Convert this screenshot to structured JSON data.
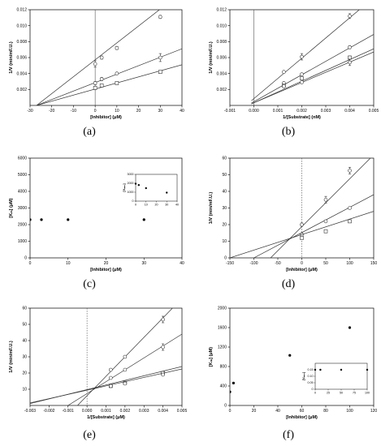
{
  "chart_data": [
    {
      "type": "scatter",
      "panel": "(a)",
      "xlabel": "[Inhibitor] (μM)",
      "ylabel": "1/V (min/mF.U.)",
      "xlim": [
        -30,
        40
      ],
      "ylim": [
        0,
        0.012
      ],
      "xticks": [
        -30,
        -20,
        -10,
        0,
        10,
        20,
        30,
        40
      ],
      "yticks": [
        0.002,
        0.004,
        0.006,
        0.008,
        0.01,
        0.012
      ],
      "xtick_labels": [
        "-30",
        "-20",
        "-10",
        "0",
        "10",
        "20",
        "30",
        "40"
      ],
      "ytick_labels": [
        "0.002",
        "0.004",
        "0.006",
        "0.008",
        "0.010",
        "0.012"
      ],
      "vline_x": 0,
      "series": [
        {
          "marker": "circle",
          "x": [
            0,
            3,
            10,
            30
          ],
          "y": [
            0.0052,
            0.006,
            0.0072,
            0.0111
          ],
          "err": [
            0.0004,
            0.0002,
            0.0002,
            0.0002
          ],
          "fit": [
            [
              -27,
              0
            ],
            [
              40,
              0.0142
            ]
          ]
        },
        {
          "marker": "circle",
          "x": [
            0,
            3,
            10,
            30
          ],
          "y": [
            0.0028,
            0.0033,
            0.004,
            0.006
          ],
          "err": [
            0.0002,
            0.0002,
            0.0001,
            0.0005
          ],
          "fit": [
            [
              -27,
              0
            ],
            [
              40,
              0.0071
            ]
          ]
        },
        {
          "marker": "square",
          "x": [
            0,
            3,
            10,
            30
          ],
          "y": [
            0.0022,
            0.0025,
            0.0028,
            0.0042
          ],
          "err": [
            0.0002,
            0.0001,
            0.0001,
            0.0001
          ],
          "fit": [
            [
              -27,
              0
            ],
            [
              40,
              0.0051
            ]
          ]
        }
      ]
    },
    {
      "type": "scatter",
      "panel": "(b)",
      "xlabel": "1/[Substrate] (nM)",
      "ylabel": "1/V (min/mF.U.)",
      "xlim": [
        -0.001,
        0.005
      ],
      "ylim": [
        0,
        0.012
      ],
      "xticks": [
        -0.001,
        0,
        0.001,
        0.002,
        0.003,
        0.004,
        0.005
      ],
      "yticks": [
        0.002,
        0.004,
        0.006,
        0.008,
        0.01,
        0.012
      ],
      "xtick_labels": [
        "-0.001",
        "0.000",
        "0.001",
        "0.002",
        "0.003",
        "0.004",
        "0.005"
      ],
      "ytick_labels": [
        "0.002",
        "0.004",
        "0.006",
        "0.008",
        "0.010",
        "0.012"
      ],
      "vline_x": 0,
      "series": [
        {
          "marker": "circle",
          "x": [
            0.00125,
            0.002,
            0.004
          ],
          "y": [
            0.0042,
            0.0061,
            0.0112
          ],
          "err": [
            0.0001,
            0.0004,
            0.0003
          ],
          "fit": [
            [
              -0.0001,
              0.0006
            ],
            [
              0.0044,
              0.012
            ]
          ]
        },
        {
          "marker": "circle",
          "x": [
            0.00125,
            0.002,
            0.004
          ],
          "y": [
            0.0028,
            0.0039,
            0.0073
          ],
          "err": [
            0.0001,
            0.0001,
            0.0002
          ],
          "fit": [
            [
              -0.0001,
              0.0003
            ],
            [
              0.005,
              0.0089
            ]
          ]
        },
        {
          "marker": "square",
          "x": [
            0.00125,
            0.002,
            0.004
          ],
          "y": [
            0.0025,
            0.0034,
            0.006
          ],
          "err": [
            0.0001,
            0.0001,
            0.0002
          ],
          "fit": [
            [
              -0.0001,
              0.0002
            ],
            [
              0.005,
              0.0071
            ]
          ]
        },
        {
          "marker": "circle",
          "x": [
            0.00125,
            0.002,
            0.004
          ],
          "y": [
            0.0024,
            0.0029,
            0.0054
          ],
          "err": [
            0.0001,
            0.0001,
            0.0004
          ],
          "fit": [
            [
              -0.0001,
              0.0002
            ],
            [
              0.005,
              0.0067
            ]
          ]
        }
      ]
    },
    {
      "type": "scatter",
      "panel": "(c)",
      "xlabel": "[Inhibitor] (μM)",
      "ylabel": "[Kₘ] (μM)",
      "xlim": [
        0,
        40
      ],
      "ylim": [
        0,
        6000
      ],
      "xticks": [
        0,
        10,
        20,
        30,
        40
      ],
      "yticks": [
        0,
        1000,
        2000,
        3000,
        4000,
        5000,
        6000
      ],
      "xtick_labels": [
        "0",
        "10",
        "20",
        "30",
        "40"
      ],
      "ytick_labels": [
        "0",
        "1000",
        "2000",
        "3000",
        "4000",
        "5000",
        "6000"
      ],
      "series": [
        {
          "marker": "dot",
          "x": [
            0,
            3,
            10,
            30
          ],
          "y": [
            2300,
            2300,
            2300,
            2300
          ]
        }
      ],
      "inset": {
        "ylabel": "[Vₘₐₓ]",
        "xlim": [
          0,
          40
        ],
        "ylim": [
          0,
          3000
        ],
        "xticks": [
          0,
          10,
          20,
          30,
          40
        ],
        "yticks": [
          0,
          1000,
          2000,
          3000
        ],
        "xtick_labels": [
          "0",
          "10",
          "20",
          "30",
          "40"
        ],
        "ytick_labels": [
          "0",
          "1000",
          "2000",
          "3000"
        ],
        "x": [
          0,
          3,
          10,
          30
        ],
        "y": [
          1950,
          1800,
          1450,
          950
        ]
      }
    },
    {
      "type": "scatter",
      "panel": "(d)",
      "xlabel": "[Inhibitor] (μM)",
      "ylabel": "1/V (min/mF.U.)",
      "xlim": [
        -150,
        150
      ],
      "ylim": [
        0,
        60
      ],
      "xticks": [
        -150,
        -100,
        -50,
        0,
        50,
        100,
        150
      ],
      "yticks": [
        0,
        10,
        20,
        30,
        40,
        50,
        60
      ],
      "xtick_labels": [
        "-150",
        "-100",
        "-50",
        "0",
        "50",
        "100",
        "150"
      ],
      "ytick_labels": [
        "0",
        "10",
        "20",
        "30",
        "40",
        "50",
        "60"
      ],
      "vline_x": 0,
      "series": [
        {
          "marker": "circle",
          "x": [
            0,
            50,
            100
          ],
          "y": [
            20,
            35,
            52.5
          ],
          "err": [
            1,
            2,
            2
          ],
          "fit": [
            [
              -65,
              0
            ],
            [
              150,
              62
            ]
          ]
        },
        {
          "marker": "circle",
          "x": [
            0,
            50,
            100
          ],
          "y": [
            14,
            22,
            30
          ],
          "err": [
            0.5,
            0.5,
            0.5
          ],
          "fit": [
            [
              -100,
              0
            ],
            [
              150,
              38
            ]
          ]
        },
        {
          "marker": "square",
          "x": [
            0,
            50,
            100
          ],
          "y": [
            12,
            16,
            22
          ],
          "err": [
            0.5,
            0.5,
            0.8
          ],
          "fit": [
            [
              -150,
              0
            ],
            [
              150,
              28
            ]
          ]
        }
      ]
    },
    {
      "type": "scatter",
      "panel": "(e)",
      "xlabel": "1/[Substrate] (μM)",
      "ylabel": "1/V (min/mF.U.)",
      "xlim": [
        -0.003,
        0.005
      ],
      "ylim": [
        0,
        60
      ],
      "xticks": [
        -0.003,
        -0.002,
        -0.001,
        0,
        0.001,
        0.002,
        0.003,
        0.004,
        0.005
      ],
      "yticks": [
        10,
        20,
        30,
        40,
        50,
        60
      ],
      "xtick_labels": [
        "-0.003",
        "-0.002",
        "-0.001",
        "0.000",
        "0.001",
        "0.002",
        "0.003",
        "0.004",
        "0.005"
      ],
      "ytick_labels": [
        "10",
        "20",
        "30",
        "40",
        "50",
        "60"
      ],
      "vline_x": 0,
      "series": [
        {
          "marker": "circle",
          "x": [
            0.00125,
            0.002,
            0.004
          ],
          "y": [
            22,
            30,
            53
          ],
          "err": [
            0.8,
            0.8,
            2
          ],
          "fit": [
            [
              -0.0005,
              0
            ],
            [
              0.0045,
              60
            ]
          ]
        },
        {
          "marker": "circle",
          "x": [
            0.00125,
            0.002,
            0.004
          ],
          "y": [
            17,
            22,
            36
          ],
          "err": [
            0.5,
            0.5,
            2
          ],
          "fit": [
            [
              -0.001,
              0
            ],
            [
              0.005,
              44
            ]
          ]
        },
        {
          "marker": "square",
          "x": [
            0.00125,
            0.002,
            0.004
          ],
          "y": [
            12,
            14,
            20
          ],
          "err": [
            0.5,
            0.5,
            0.8
          ],
          "fit": [
            [
              -0.003,
              1.2
            ],
            [
              0.005,
              24
            ]
          ]
        },
        {
          "marker": "circle",
          "x": [
            0.00125,
            0.002,
            0.004
          ],
          "y": [
            12,
            13.5,
            19
          ],
          "err": [
            0.5,
            0.5,
            0.5
          ],
          "fit": [
            [
              -0.003,
              1.6
            ],
            [
              0.005,
              22.5
            ]
          ]
        }
      ]
    },
    {
      "type": "scatter",
      "panel": "(f)",
      "xlabel": "[Inhibitor] (μM)",
      "ylabel": "[Kₘ] (μM)",
      "xlim": [
        0,
        120
      ],
      "ylim": [
        0,
        2000
      ],
      "xticks": [
        0,
        20,
        40,
        60,
        80,
        100,
        120
      ],
      "yticks": [
        0,
        400,
        800,
        1200,
        1600,
        2000
      ],
      "xtick_labels": [
        "0",
        "20",
        "40",
        "60",
        "80",
        "100",
        "120"
      ],
      "ytick_labels": [
        "0",
        "400",
        "800",
        "1200",
        "1600",
        "2000"
      ],
      "series": [
        {
          "marker": "dot",
          "x": [
            0,
            3,
            50,
            100
          ],
          "y": [
            280,
            460,
            1030,
            1600
          ]
        }
      ],
      "inset": {
        "ylabel": "[Vₘₐₓ]",
        "xlim": [
          0,
          100
        ],
        "ylim": [
          0,
          0.2
        ],
        "xticks": [
          0,
          25,
          50,
          75,
          100
        ],
        "yticks": [
          0,
          0.05,
          0.1,
          0.15
        ],
        "xtick_labels": [
          "0",
          "25",
          "50",
          "75",
          "100"
        ],
        "ytick_labels": [
          "0",
          "0.05",
          "0.10",
          "0.15"
        ],
        "x": [
          0,
          10,
          50,
          100
        ],
        "y": [
          0.15,
          0.15,
          0.15,
          0.15
        ]
      }
    }
  ]
}
